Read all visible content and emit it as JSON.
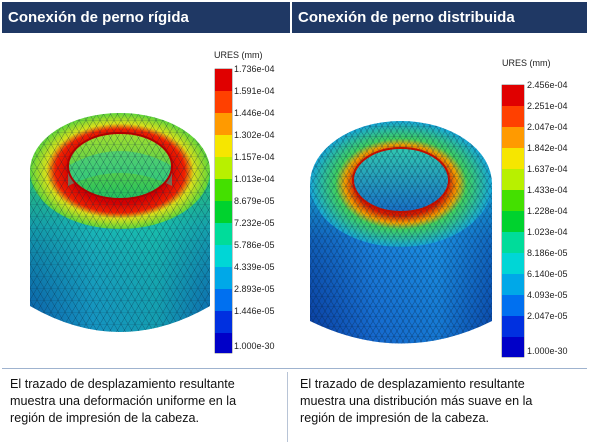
{
  "panels": [
    {
      "header": "Conexión de perno rígida",
      "legend_title": "URES (mm)",
      "legend_values": [
        "1.736e-04",
        "1.591e-04",
        "1.446e-04",
        "1.302e-04",
        "1.157e-04",
        "1.013e-04",
        "8.679e-05",
        "7.232e-05",
        "5.786e-05",
        "4.339e-05",
        "2.893e-05",
        "1.446e-05",
        "1.000e-30"
      ],
      "caption_lines": [
        "El trazado de desplazamiento resultante",
        "muestra una deformación uniforme en la",
        "región de impresión de la cabeza."
      ]
    },
    {
      "header": "Conexión de perno distribuida",
      "legend_title": "URES (mm)",
      "legend_values": [
        "2.456e-04",
        "2.251e-04",
        "2.047e-04",
        "1.842e-04",
        "1.637e-04",
        "1.433e-04",
        "1.228e-04",
        "1.023e-04",
        "8.186e-05",
        "6.140e-05",
        "4.093e-05",
        "2.047e-05",
        "1.000e-30"
      ],
      "caption_lines": [
        "El trazado de desplazamiento resultante",
        "muestra una distribución más suave en la",
        "región de impresión de la cabeza."
      ]
    }
  ],
  "legend_colors": [
    "#e00000",
    "#ff4000",
    "#ff9a00",
    "#f6e600",
    "#b8f000",
    "#44e000",
    "#00d22e",
    "#00dc9a",
    "#00d6d6",
    "#00a8e8",
    "#0070f0",
    "#0030e0",
    "#0000c8"
  ],
  "model_colors": {
    "left": {
      "outer": "#19a6cc",
      "outer_top": "#2fd36a",
      "rim_top": "#a8e020",
      "rim_hot": "#e01000",
      "hole": "#2bd070"
    },
    "right": {
      "outer": "#1a77d6",
      "outer_top": "#1aa0e8",
      "rim_top": "#1fd3c8",
      "rim_hot": "#d81a00",
      "hole": "#1f9ad0"
    }
  }
}
